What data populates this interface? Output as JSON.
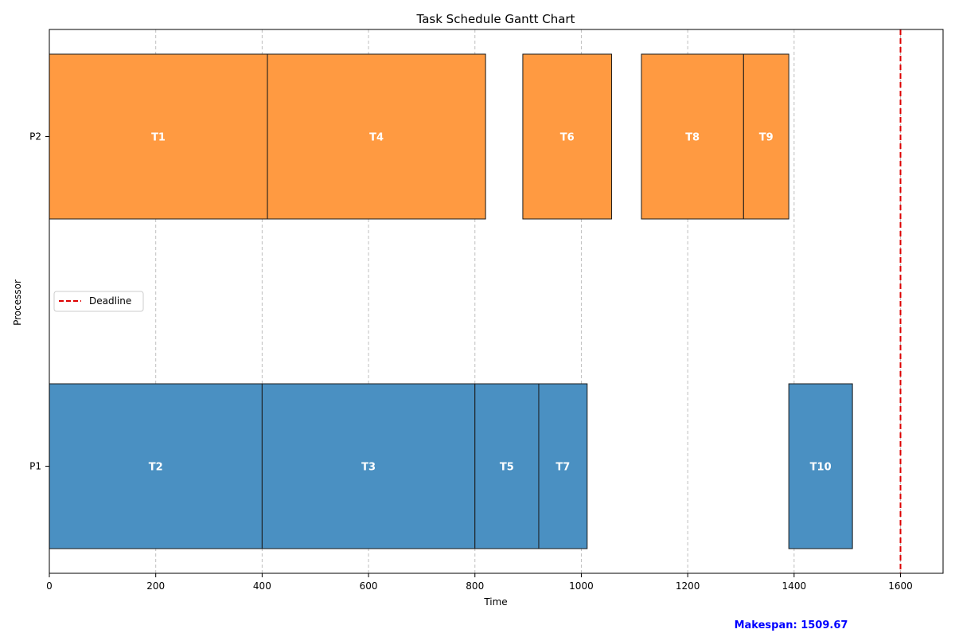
{
  "chart_data": {
    "type": "gantt",
    "title": "Task Schedule Gantt Chart",
    "xlabel": "Time",
    "ylabel": "Processor",
    "xlim": [
      0,
      1680
    ],
    "xticks": [
      0,
      200,
      400,
      600,
      800,
      1000,
      1200,
      1400,
      1600
    ],
    "processors": [
      "P1",
      "P2"
    ],
    "grid": "vertical-dashed",
    "colors": {
      "P1": "#4a90c2",
      "P2": "#ff9a41",
      "deadline": "#dd0000",
      "makespan": "#0000ff"
    },
    "tasks": [
      {
        "name": "T1",
        "processor": "P2",
        "start": 0,
        "end": 410
      },
      {
        "name": "T4",
        "processor": "P2",
        "start": 410,
        "end": 820
      },
      {
        "name": "T6",
        "processor": "P2",
        "start": 890,
        "end": 1057
      },
      {
        "name": "T8",
        "processor": "P2",
        "start": 1113,
        "end": 1305
      },
      {
        "name": "T9",
        "processor": "P2",
        "start": 1305,
        "end": 1390
      },
      {
        "name": "T2",
        "processor": "P1",
        "start": 0,
        "end": 400
      },
      {
        "name": "T3",
        "processor": "P1",
        "start": 400,
        "end": 800
      },
      {
        "name": "T5",
        "processor": "P1",
        "start": 800,
        "end": 920
      },
      {
        "name": "T7",
        "processor": "P1",
        "start": 920,
        "end": 1011
      },
      {
        "name": "T10",
        "processor": "P1",
        "start": 1390,
        "end": 1509.67
      }
    ],
    "deadline": {
      "label": "Deadline",
      "value": 1600
    },
    "legend_position": "center-left",
    "makespan_text": "Makespan: 1509.67"
  }
}
